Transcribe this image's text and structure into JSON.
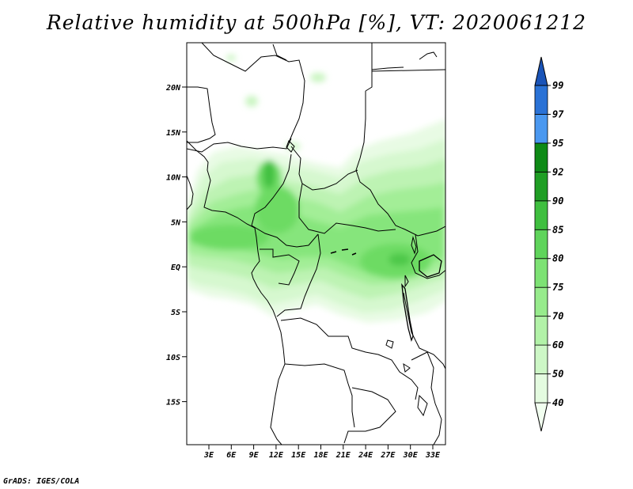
{
  "title": "Relative humidity at 500hPa [%], VT: 2020061212",
  "credit": "GrADS: IGES/COLA",
  "lat_labels": [
    "20N",
    "15N",
    "10N",
    "5N",
    "EQ",
    "5S",
    "10S",
    "15S"
  ],
  "lon_labels": [
    "3E",
    "6E",
    "9E",
    "12E",
    "15E",
    "18E",
    "21E",
    "24E",
    "27E",
    "30E",
    "33E"
  ],
  "colorbar": {
    "labels": [
      "40",
      "50",
      "60",
      "70",
      "75",
      "80",
      "85",
      "90",
      "92",
      "95",
      "97",
      "99"
    ],
    "colors": [
      "#f2fff0",
      "#e4fbe0",
      "#cdf7c6",
      "#b2f2a8",
      "#97eb8c",
      "#7de274",
      "#5fd45b",
      "#3fbf3f",
      "#1f9e24",
      "#0e8a16",
      "#4a98f0",
      "#2a72d6",
      "#1a54b8"
    ]
  },
  "map": {
    "lon_range": [
      0,
      35
    ],
    "lat_range": [
      -20,
      25
    ]
  }
}
